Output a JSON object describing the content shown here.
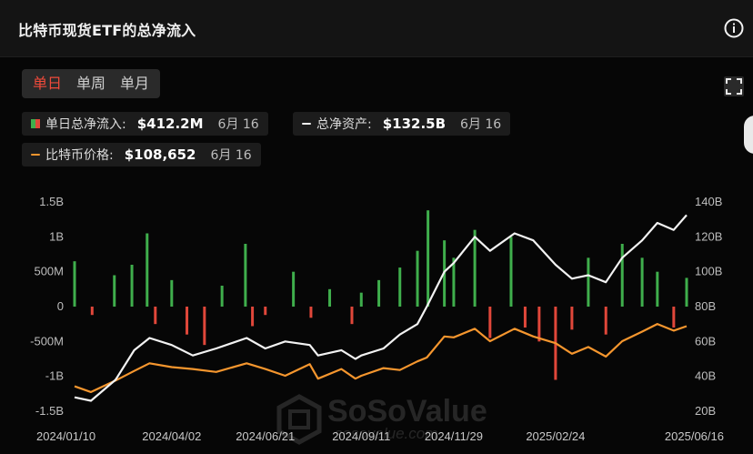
{
  "header": {
    "title": "比特币现货ETF的总净流入",
    "info_icon": "info-icon"
  },
  "tabs": [
    {
      "label": "单日",
      "active": true
    },
    {
      "label": "单周",
      "active": false
    },
    {
      "label": "单月",
      "active": false
    }
  ],
  "stats": {
    "daily_inflow": {
      "label": "单日总净流入:",
      "value": "$412.2M",
      "date": "6月 16"
    },
    "net_assets": {
      "label": "总净资产:",
      "value": "$132.5B",
      "date": "6月 16"
    },
    "btc_price": {
      "label": "比特币价格:",
      "value": "$108,652",
      "date": "6月 16"
    }
  },
  "watermark": {
    "brand": "SoSoValue",
    "site": "sosovalue.com"
  },
  "colors": {
    "inflow_pos": "#3fae4c",
    "inflow_neg": "#e0473a",
    "net_assets_line": "#f2f2f2",
    "price_line": "#f5962e",
    "active_tab": "#f04a3a"
  },
  "chart_data": {
    "type": "bar+line",
    "x_ticks": [
      "2024/01/10",
      "2024/04/02",
      "2024/06/21",
      "2024/09/11",
      "2024/11/29",
      "2025/02/24",
      "2025/06/16"
    ],
    "y_left_ticks": [
      "1.5B",
      "1B",
      "500M",
      "0",
      "-500M",
      "-1B",
      "-1.5B"
    ],
    "y_left_lim": [
      -1500,
      1500
    ],
    "y_left_unit": "M USD",
    "y_right_ticks": [
      "140B",
      "120B",
      "100B",
      "80B",
      "60B",
      "40B",
      "20B"
    ],
    "y_right_lim": [
      20,
      140
    ],
    "y_right_unit": "B USD",
    "series": [
      {
        "name": "单日总净流入",
        "kind": "bar",
        "x": [
          "2024/01/10",
          "2024/01/25",
          "2024/02/13",
          "2024/02/28",
          "2024/03/12",
          "2024/03/19",
          "2024/04/02",
          "2024/04/15",
          "2024/04/30",
          "2024/05/15",
          "2024/06/04",
          "2024/06/10",
          "2024/06/21",
          "2024/07/15",
          "2024/07/30",
          "2024/08/15",
          "2024/09/03",
          "2024/09/11",
          "2024/09/26",
          "2024/10/14",
          "2024/10/29",
          "2024/11/07",
          "2024/11/21",
          "2024/11/29",
          "2024/12/17",
          "2024/12/30",
          "2025/01/17",
          "2025/01/29",
          "2025/02/10",
          "2025/02/24",
          "2025/03/10",
          "2025/03/24",
          "2025/04/08",
          "2025/04/22",
          "2025/05/09",
          "2025/05/22",
          "2025/06/05",
          "2025/06/16"
        ],
        "values": [
          650,
          -120,
          450,
          600,
          1050,
          -250,
          380,
          -400,
          -550,
          300,
          900,
          -280,
          -120,
          500,
          -160,
          250,
          -250,
          200,
          380,
          560,
          800,
          1380,
          950,
          700,
          1100,
          -450,
          1000,
          -300,
          -500,
          -1050,
          -330,
          700,
          -400,
          900,
          700,
          500,
          -300,
          412
        ]
      },
      {
        "name": "总净资产",
        "kind": "line",
        "x": [
          "2024/01/10",
          "2024/01/24",
          "2024/02/14",
          "2024/03/01",
          "2024/03/14",
          "2024/04/02",
          "2024/04/20",
          "2024/05/10",
          "2024/06/05",
          "2024/06/21",
          "2024/07/08",
          "2024/07/29",
          "2024/08/05",
          "2024/08/25",
          "2024/09/06",
          "2024/09/11",
          "2024/09/30",
          "2024/10/14",
          "2024/10/29",
          "2024/11/06",
          "2024/11/21",
          "2024/11/29",
          "2024/12/17",
          "2024/12/30",
          "2025/01/20",
          "2025/02/05",
          "2025/02/24",
          "2025/03/10",
          "2025/03/24",
          "2025/04/08",
          "2025/04/22",
          "2025/05/09",
          "2025/05/22",
          "2025/06/05",
          "2025/06/16"
        ],
        "values": [
          28,
          26,
          38,
          55,
          62,
          58,
          52,
          56,
          62,
          56,
          60,
          58,
          52,
          55,
          50,
          52,
          56,
          64,
          70,
          80,
          100,
          105,
          120,
          112,
          122,
          118,
          104,
          96,
          98,
          94,
          108,
          118,
          128,
          124,
          132.5
        ]
      },
      {
        "name": "比特币价格",
        "kind": "line",
        "x": [
          "2024/01/10",
          "2024/01/24",
          "2024/02/14",
          "2024/03/01",
          "2024/03/14",
          "2024/04/02",
          "2024/04/20",
          "2024/05/10",
          "2024/06/05",
          "2024/06/21",
          "2024/07/08",
          "2024/07/29",
          "2024/08/05",
          "2024/08/25",
          "2024/09/06",
          "2024/09/11",
          "2024/09/30",
          "2024/10/14",
          "2024/10/29",
          "2024/11/06",
          "2024/11/21",
          "2024/11/29",
          "2024/12/17",
          "2024/12/30",
          "2025/01/20",
          "2025/02/05",
          "2025/02/24",
          "2025/03/10",
          "2025/03/24",
          "2025/04/08",
          "2025/04/22",
          "2025/05/09",
          "2025/05/22",
          "2025/06/05",
          "2025/06/16"
        ],
        "values": [
          46000,
          40000,
          52000,
          62000,
          70000,
          66000,
          64000,
          61000,
          70000,
          64000,
          57000,
          69000,
          54000,
          64000,
          54000,
          57000,
          65000,
          63000,
          72000,
          76000,
          98000,
          97000,
          106000,
          93000,
          106000,
          98000,
          91000,
          80000,
          87000,
          77000,
          93000,
          103000,
          111000,
          104000,
          108652
        ]
      }
    ]
  }
}
